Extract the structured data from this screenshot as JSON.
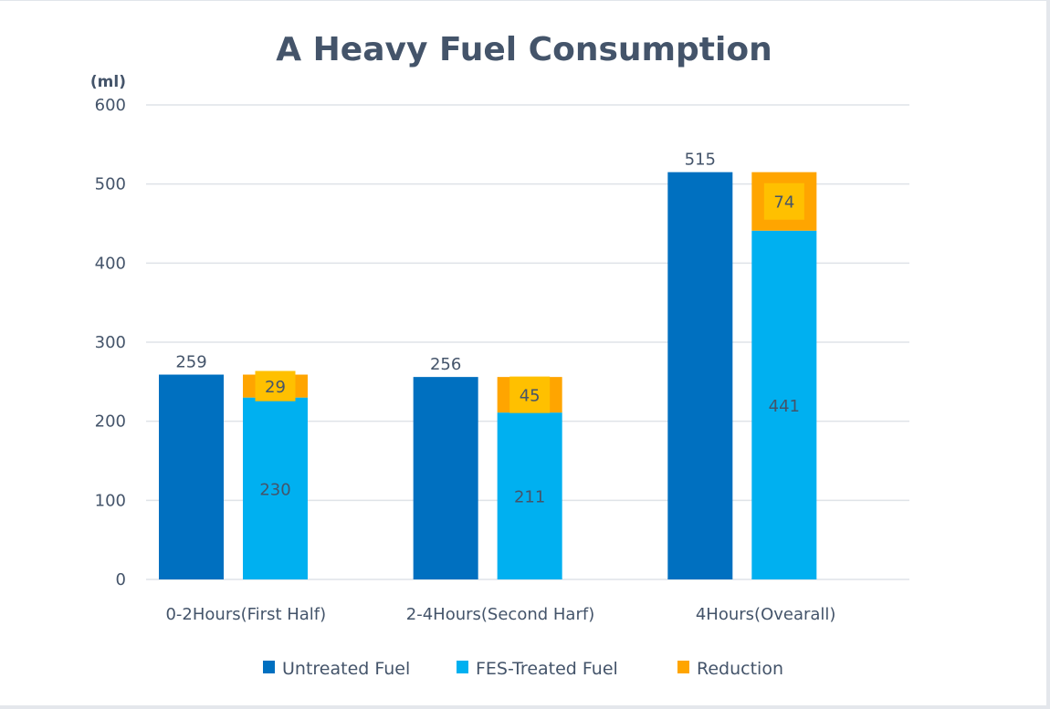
{
  "chart_data": {
    "type": "bar",
    "stacked_series": [
      "FES-Treated Fuel",
      "Reduction"
    ],
    "title": "A Heavy Fuel Consumption",
    "ylabel": "(ml)",
    "xlabel": "",
    "ylim": [
      0,
      600
    ],
    "yticks": [
      0,
      100,
      200,
      300,
      400,
      500,
      600
    ],
    "grid": true,
    "legend_position": "bottom",
    "categories": [
      "0-2Hours(First Half)",
      "2-4Hours(Second Harf)",
      "4Hours(Ovearall)"
    ],
    "series": [
      {
        "name": "Untreated Fuel",
        "color": "#0070c0",
        "values": [
          259,
          256,
          515
        ]
      },
      {
        "name": "FES-Treated Fuel",
        "color": "#00b0f0",
        "values": [
          230,
          211,
          441
        ]
      },
      {
        "name": "Reduction",
        "color": "#ffa500",
        "label_bg": "#ffc000",
        "values": [
          29,
          45,
          74
        ]
      }
    ]
  }
}
